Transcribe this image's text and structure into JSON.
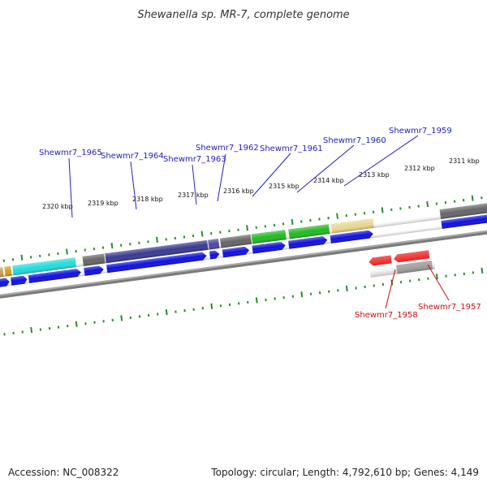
{
  "title": "Shewanella sp. MR-7, complete genome",
  "footer": {
    "accession": "Accession: NC_008322",
    "summary": "Topology: circular; Length: 4,792,610 bp; Genes: 4,149"
  },
  "colors": {
    "backbone": "#808080",
    "tick": "#2a8a2a",
    "top_label": "#2222bb",
    "bottom_label": "#cc1111"
  },
  "kbp_labels": [
    "2320 kbp",
    "2319 kbp",
    "2318 kbp",
    "2317 kbp",
    "2316 kbp",
    "2315 kbp",
    "2314 kbp",
    "2313 kbp",
    "2312 kbp",
    "2311 kbp"
  ],
  "top_genes": [
    "Shewmr7_1965",
    "Shewmr7_1964",
    "Shewmr7_1963",
    "Shewmr7_1962",
    "Shewmr7_1961",
    "Shewmr7_1960",
    "Shewmr7_1959"
  ],
  "bottom_genes": [
    "Shewmr7_1958",
    "Shewmr7_1957"
  ]
}
